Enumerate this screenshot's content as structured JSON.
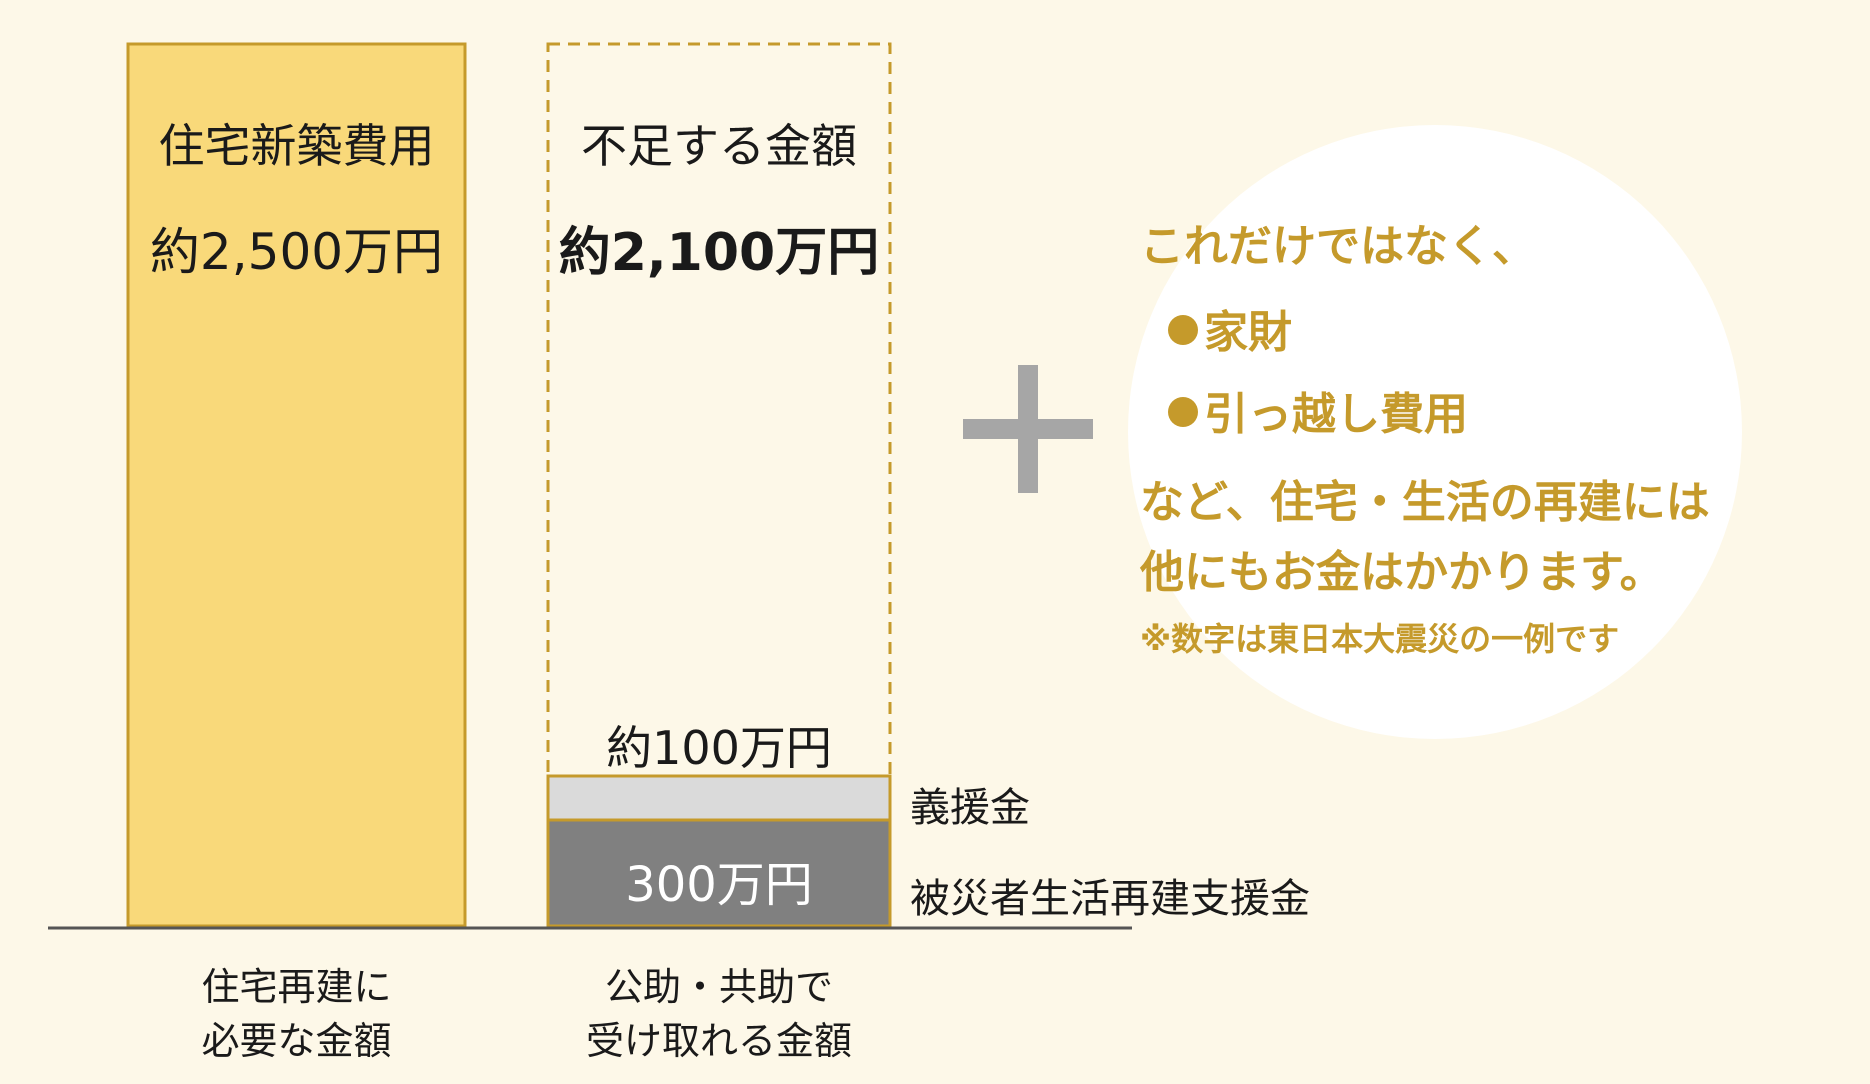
{
  "chart_data": {
    "type": "bar",
    "ylim": [
      0,
      2500
    ],
    "bars": [
      {
        "category": "住宅再建に\n必要な金額",
        "total": 2500,
        "top_label": "住宅新築費用",
        "value_label": "約2,500万円",
        "segments": [
          {
            "name": "住宅新築費用",
            "value": 2500,
            "color": "#f9d97a",
            "border": "#c59a2b"
          }
        ]
      },
      {
        "category": "公助・共助で\n受け取れる金額",
        "total": 2500,
        "top_label": "不足する金額",
        "value_label": "約2,100万円",
        "segments": [
          {
            "name": "被災者生活再建支援金",
            "value": 300,
            "color": "#808080",
            "border": "#c59a2b",
            "label": "300万円"
          },
          {
            "name": "義援金",
            "value": 100,
            "color": "#dadada",
            "border": "#c59a2b",
            "label": "約100万円"
          },
          {
            "name": "不足する金額",
            "value": 2100,
            "color": "none",
            "border": "#c59a2b",
            "dashed": true
          }
        ]
      }
    ]
  },
  "text": {
    "bar1_cat_line1": "住宅再建に",
    "bar1_cat_line2": "必要な金額",
    "bar2_cat_line1": "公助・共助で",
    "bar2_cat_line2": "受け取れる金額",
    "bar1_title": "住宅新築費用",
    "bar1_value": "約2,500万円",
    "bar2_title": "不足する金額",
    "bar2_value": "約2,100万円",
    "gien_value": "約100万円",
    "shien_value": "300万円",
    "gien_name": "義援金",
    "shien_name": "被災者生活再建支援金"
  },
  "note": {
    "line1": "これだけではなく、",
    "item1": "家財",
    "item2": "引っ越し費用",
    "line2": "など、住宅・生活の再建には",
    "line3": "他にもお金はかかります。",
    "footnote": "※数字は東日本大震災の一例です"
  },
  "colors": {
    "background": "#fdf8e8",
    "accent": "#c59a2b",
    "plus": "#a6a6a6"
  }
}
